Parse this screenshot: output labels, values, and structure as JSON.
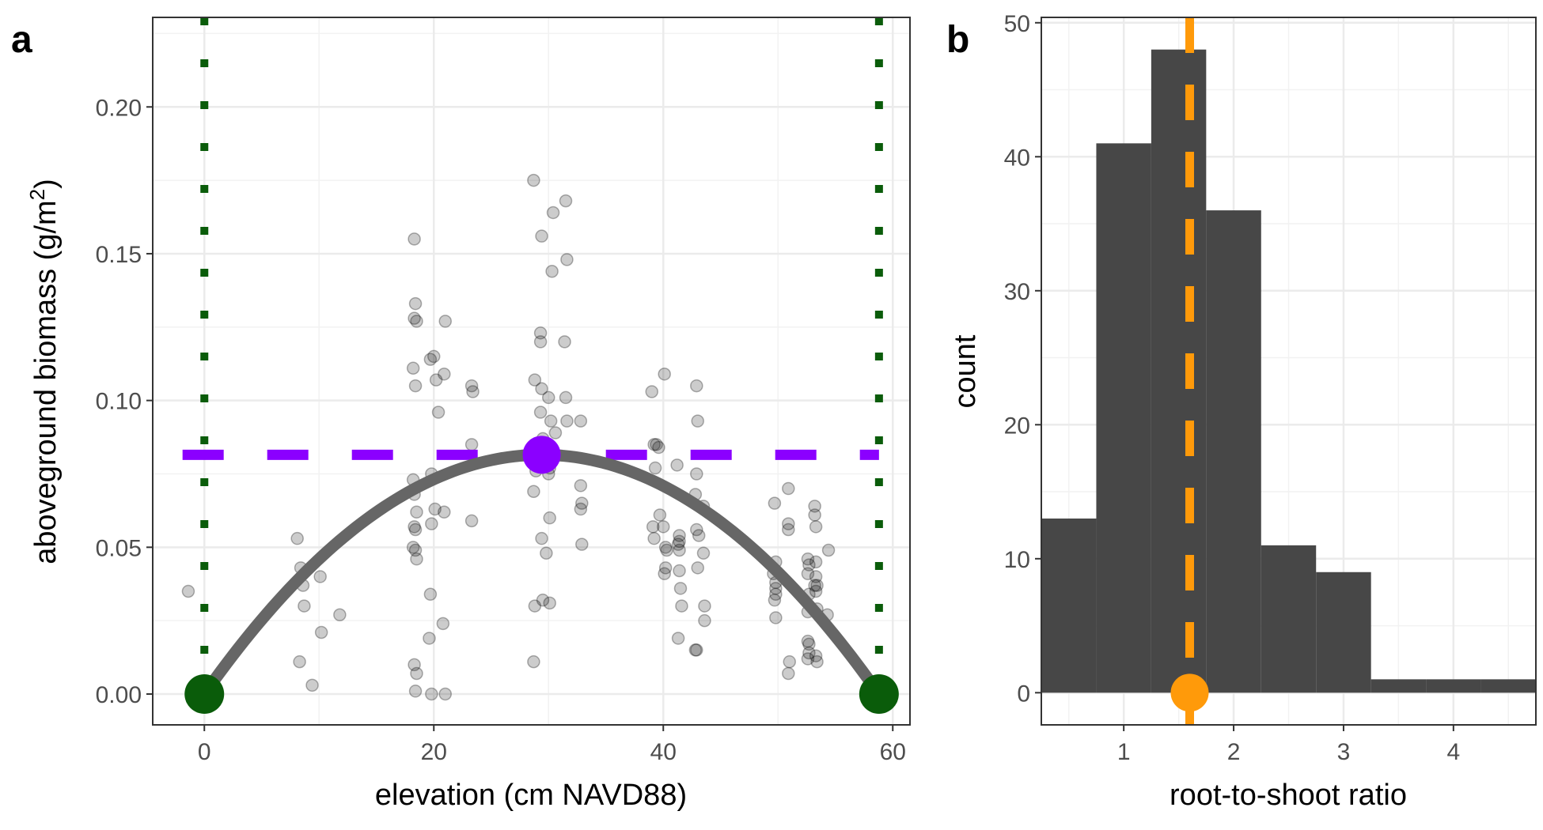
{
  "chart_data": [
    {
      "panel": "a",
      "type": "scatter",
      "title": "",
      "xlabel": "elevation (cm NAVD88)",
      "ylabel_main": "aboveground biomass (g/m",
      "ylabel_sup": "2",
      "ylabel_end": ")",
      "xlim": [
        -4.5,
        61.5
      ],
      "ylim": [
        -0.0105,
        0.2305
      ],
      "xticks": [
        0,
        20,
        40,
        60
      ],
      "xtick_labels": [
        "0",
        "20",
        "40",
        "60"
      ],
      "yticks": [
        0,
        0.05,
        0.1,
        0.15,
        0.2
      ],
      "ytick_labels": [
        "0.00",
        "0.05",
        "0.10",
        "0.15",
        "0.20"
      ],
      "grid": true,
      "points": [
        [
          -1.4,
          0.035
        ],
        [
          8.1,
          0.053
        ],
        [
          8.3,
          0.011
        ],
        [
          8.4,
          0.043
        ],
        [
          8.6,
          0.037
        ],
        [
          8.7,
          0.03
        ],
        [
          9.4,
          0.003
        ],
        [
          10.1,
          0.04
        ],
        [
          10.2,
          0.021
        ],
        [
          11.8,
          0.027
        ],
        [
          18.3,
          0.155
        ],
        [
          18.4,
          0.133
        ],
        [
          18.3,
          0.128
        ],
        [
          18.5,
          0.127
        ],
        [
          18.2,
          0.111
        ],
        [
          18.4,
          0.105
        ],
        [
          18.2,
          0.073
        ],
        [
          18.3,
          0.068
        ],
        [
          18.5,
          0.062
        ],
        [
          18.3,
          0.057
        ],
        [
          18.4,
          0.056
        ],
        [
          18.2,
          0.05
        ],
        [
          18.4,
          0.049
        ],
        [
          18.5,
          0.046
        ],
        [
          18.3,
          0.01
        ],
        [
          18.5,
          0.007
        ],
        [
          18.4,
          0.001
        ],
        [
          19.7,
          0.114
        ],
        [
          20.0,
          0.115
        ],
        [
          20.2,
          0.107
        ],
        [
          20.4,
          0.096
        ],
        [
          19.8,
          0.075
        ],
        [
          20.1,
          0.063
        ],
        [
          19.8,
          0.058
        ],
        [
          19.7,
          0.034
        ],
        [
          19.6,
          0.019
        ],
        [
          19.8,
          0.0
        ],
        [
          21.0,
          0.127
        ],
        [
          20.9,
          0.109
        ],
        [
          20.9,
          0.062
        ],
        [
          20.8,
          0.024
        ],
        [
          21.0,
          0.0
        ],
        [
          23.3,
          0.105
        ],
        [
          23.4,
          0.103
        ],
        [
          23.3,
          0.085
        ],
        [
          23.3,
          0.059
        ],
        [
          28.7,
          0.175
        ],
        [
          28.8,
          0.107
        ],
        [
          28.9,
          0.076
        ],
        [
          28.7,
          0.069
        ],
        [
          28.8,
          0.03
        ],
        [
          28.7,
          0.011
        ],
        [
          29.4,
          0.156
        ],
        [
          29.3,
          0.123
        ],
        [
          29.3,
          0.12
        ],
        [
          29.4,
          0.104
        ],
        [
          29.3,
          0.096
        ],
        [
          29.5,
          0.087
        ],
        [
          29.6,
          0.081
        ],
        [
          29.4,
          0.053
        ],
        [
          29.5,
          0.032
        ],
        [
          29.8,
          0.048
        ],
        [
          30.0,
          0.101
        ],
        [
          30.2,
          0.093
        ],
        [
          30.1,
          0.077
        ],
        [
          30.0,
          0.075
        ],
        [
          30.1,
          0.06
        ],
        [
          30.1,
          0.031
        ],
        [
          30.4,
          0.164
        ],
        [
          30.3,
          0.144
        ],
        [
          30.6,
          0.089
        ],
        [
          31.5,
          0.168
        ],
        [
          31.6,
          0.148
        ],
        [
          31.4,
          0.12
        ],
        [
          31.5,
          0.101
        ],
        [
          31.6,
          0.093
        ],
        [
          32.8,
          0.093
        ],
        [
          32.8,
          0.071
        ],
        [
          32.9,
          0.065
        ],
        [
          32.8,
          0.063
        ],
        [
          32.9,
          0.051
        ],
        [
          39.0,
          0.103
        ],
        [
          39.2,
          0.085
        ],
        [
          39.4,
          0.085
        ],
        [
          39.3,
          0.077
        ],
        [
          39.1,
          0.057
        ],
        [
          39.2,
          0.053
        ],
        [
          39.6,
          0.084
        ],
        [
          39.7,
          0.061
        ],
        [
          40.1,
          0.109
        ],
        [
          40.0,
          0.057
        ],
        [
          40.2,
          0.05
        ],
        [
          40.3,
          0.049
        ],
        [
          40.2,
          0.043
        ],
        [
          40.1,
          0.041
        ],
        [
          41.2,
          0.078
        ],
        [
          41.4,
          0.054
        ],
        [
          41.4,
          0.052
        ],
        [
          41.3,
          0.051
        ],
        [
          41.4,
          0.049
        ],
        [
          41.4,
          0.042
        ],
        [
          41.5,
          0.036
        ],
        [
          41.6,
          0.03
        ],
        [
          41.3,
          0.019
        ],
        [
          42.9,
          0.105
        ],
        [
          43.0,
          0.093
        ],
        [
          42.9,
          0.075
        ],
        [
          42.8,
          0.068
        ],
        [
          42.9,
          0.056
        ],
        [
          43.1,
          0.054
        ],
        [
          43.0,
          0.043
        ],
        [
          42.8,
          0.015
        ],
        [
          42.9,
          0.015
        ],
        [
          43.5,
          0.064
        ],
        [
          43.5,
          0.048
        ],
        [
          43.6,
          0.03
        ],
        [
          43.6,
          0.025
        ],
        [
          49.7,
          0.065
        ],
        [
          49.8,
          0.045
        ],
        [
          49.6,
          0.041
        ],
        [
          49.8,
          0.038
        ],
        [
          49.8,
          0.034
        ],
        [
          49.7,
          0.032
        ],
        [
          49.8,
          0.026
        ],
        [
          49.8,
          0.036
        ],
        [
          50.9,
          0.07
        ],
        [
          50.9,
          0.058
        ],
        [
          50.9,
          0.056
        ],
        [
          51.0,
          0.011
        ],
        [
          50.9,
          0.007
        ],
        [
          52.6,
          0.046
        ],
        [
          52.7,
          0.044
        ],
        [
          52.6,
          0.041
        ],
        [
          52.7,
          0.034
        ],
        [
          52.6,
          0.028
        ],
        [
          52.7,
          0.017
        ],
        [
          52.6,
          0.018
        ],
        [
          52.7,
          0.014
        ],
        [
          52.6,
          0.012
        ],
        [
          53.2,
          0.064
        ],
        [
          53.2,
          0.061
        ],
        [
          53.3,
          0.057
        ],
        [
          53.3,
          0.045
        ],
        [
          53.3,
          0.04
        ],
        [
          53.2,
          0.037
        ],
        [
          53.4,
          0.037
        ],
        [
          53.3,
          0.035
        ],
        [
          53.4,
          0.029
        ],
        [
          53.4,
          0.011
        ],
        [
          53.3,
          0.013
        ],
        [
          54.4,
          0.049
        ],
        [
          54.3,
          0.027
        ]
      ],
      "fit_curve": {
        "type": "quadratic",
        "roots": [
          0,
          58.8
        ],
        "vertex": [
          29.4,
          0.0815
        ],
        "color": "#666666"
      },
      "optimum_line": {
        "y": 0.0815,
        "color": "#8B00FF",
        "style": "dashed"
      },
      "optimum_point": {
        "x": 29.4,
        "y": 0.0815,
        "color": "#8B00FF"
      },
      "limit_lines": {
        "x": [
          0,
          58.8
        ],
        "color": "#0A5C0A",
        "style": "dotted"
      },
      "limit_points": [
        [
          0,
          0
        ],
        [
          58.8,
          0
        ]
      ],
      "point_color": "#000000"
    },
    {
      "panel": "b",
      "type": "bar",
      "title": "",
      "xlabel": "root-to-shoot ratio",
      "ylabel": "count",
      "xlim": [
        0.25,
        4.75
      ],
      "ylim": [
        -2.4,
        50.4
      ],
      "xticks": [
        1,
        2,
        3,
        4
      ],
      "xtick_labels": [
        "1",
        "2",
        "3",
        "4"
      ],
      "yticks": [
        0,
        10,
        20,
        30,
        40,
        50
      ],
      "ytick_labels": [
        "0",
        "10",
        "20",
        "30",
        "40",
        "50"
      ],
      "grid": true,
      "bins": [
        {
          "x0": 0.25,
          "x1": 0.75,
          "count": 13
        },
        {
          "x0": 0.75,
          "x1": 1.25,
          "count": 41
        },
        {
          "x0": 1.25,
          "x1": 1.75,
          "count": 48
        },
        {
          "x0": 1.75,
          "x1": 2.25,
          "count": 36
        },
        {
          "x0": 2.25,
          "x1": 2.75,
          "count": 11
        },
        {
          "x0": 2.75,
          "x1": 3.25,
          "count": 9
        },
        {
          "x0": 3.25,
          "x1": 3.75,
          "count": 1
        },
        {
          "x0": 3.75,
          "x1": 4.25,
          "count": 1
        },
        {
          "x0": 4.25,
          "x1": 4.75,
          "count": 1
        }
      ],
      "bar_color": "#474747",
      "median_line": {
        "x": 1.6,
        "color": "#FF9A0A",
        "style": "dashed"
      },
      "median_point": {
        "x": 1.6,
        "y": 0,
        "color": "#FF9A0A"
      }
    }
  ]
}
